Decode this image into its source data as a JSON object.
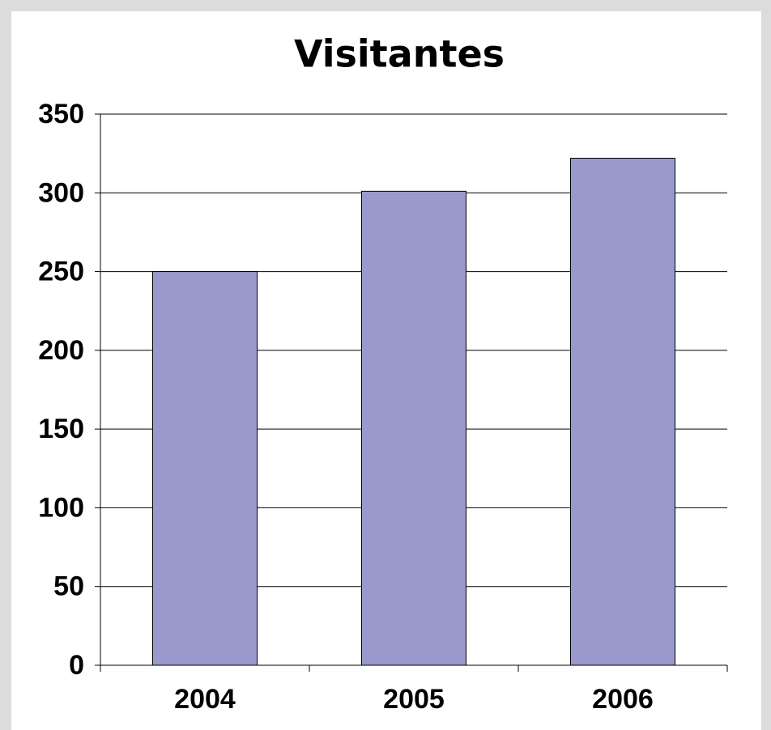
{
  "chart_data": {
    "type": "bar",
    "title": "Visitantes",
    "categories": [
      "2004",
      "2005",
      "2006"
    ],
    "values": [
      250,
      301,
      322
    ],
    "color": "#9999cc",
    "ylim": [
      0,
      350
    ],
    "yticks": [
      0,
      50,
      100,
      150,
      200,
      250,
      300,
      350
    ],
    "grid": true
  }
}
